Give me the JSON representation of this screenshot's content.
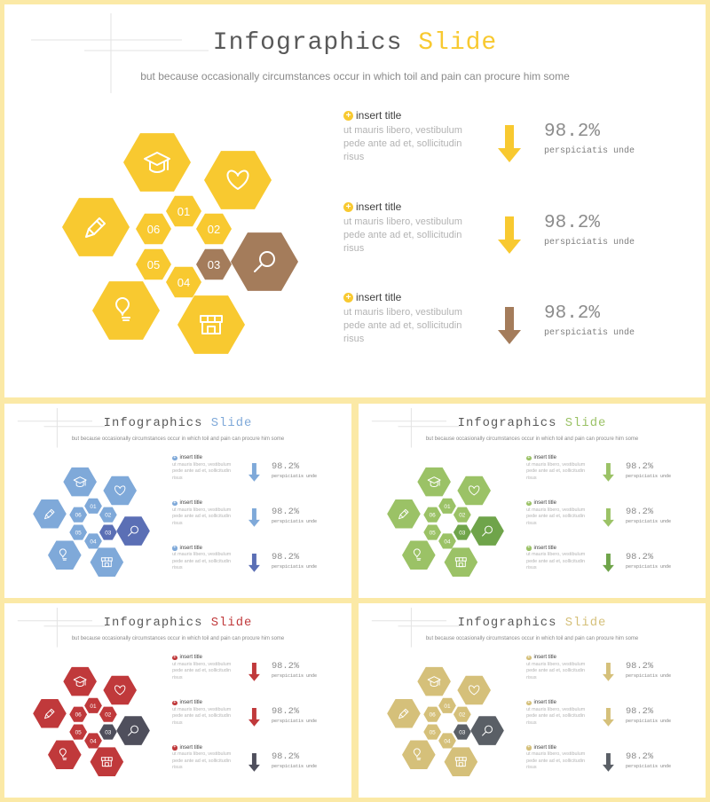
{
  "slides": [
    {
      "title_word1": "Infographics",
      "title_word2": "Slide",
      "subtitle": "but because occasionally circumstances occur in which toil and pain can procure him some",
      "colors": {
        "main": "#f8c930",
        "accent": "#a47c5b",
        "arrow_last": "#a47c5b"
      },
      "hex_numbers": [
        "01",
        "02",
        "03",
        "04",
        "05",
        "06"
      ],
      "hex_icons": [
        "graduation-cap-icon",
        "heart-icon",
        "magnifier-icon",
        "shop-icon",
        "lightbulb-icon",
        "pencil-icon"
      ],
      "items": [
        {
          "title": "insert title",
          "body": "ut mauris libero, vestibulum pede ante ad et, sollicitudin risus",
          "value": "98.2%",
          "caption": "perspiciatis unde"
        },
        {
          "title": "insert title",
          "body": "ut mauris libero, vestibulum pede ante ad et, sollicitudin risus",
          "value": "98.2%",
          "caption": "perspiciatis unde"
        },
        {
          "title": "insert title",
          "body": "ut mauris libero, vestibulum pede ante ad et, sollicitudin risus",
          "value": "98.2%",
          "caption": "perspiciatis unde"
        }
      ]
    },
    {
      "title_word1": "Infographics",
      "title_word2": "Slide",
      "subtitle": "but because occasionally circumstances occur in which toil and pain can procure him some",
      "colors": {
        "main": "#7fa9d9",
        "accent": "#5b6fb5",
        "arrow_last": "#5b6fb5"
      },
      "hex_numbers": [
        "01",
        "02",
        "03",
        "04",
        "05",
        "06"
      ],
      "hex_icons": [
        "graduation-cap-icon",
        "heart-icon",
        "magnifier-icon",
        "shop-icon",
        "lightbulb-icon",
        "pencil-icon"
      ],
      "items": [
        {
          "title": "insert title",
          "body": "ut mauris libero, vestibulum pede ante ad et, sollicitudin risus",
          "value": "98.2%",
          "caption": "perspiciatis unde"
        },
        {
          "title": "insert title",
          "body": "ut mauris libero, vestibulum pede ante ad et, sollicitudin risus",
          "value": "98.2%",
          "caption": "perspiciatis unde"
        },
        {
          "title": "insert title",
          "body": "ut mauris libero, vestibulum pede ante ad et, sollicitudin risus",
          "value": "98.2%",
          "caption": "perspiciatis unde"
        }
      ]
    },
    {
      "title_word1": "Infographics",
      "title_word2": "Slide",
      "subtitle": "but because occasionally circumstances occur in which toil and pain can procure him some",
      "colors": {
        "main": "#9bc266",
        "accent": "#6fa44a",
        "arrow_last": "#6fa44a"
      },
      "hex_numbers": [
        "01",
        "02",
        "03",
        "04",
        "05",
        "06"
      ],
      "hex_icons": [
        "graduation-cap-icon",
        "heart-icon",
        "magnifier-icon",
        "shop-icon",
        "lightbulb-icon",
        "pencil-icon"
      ],
      "items": [
        {
          "title": "insert title",
          "body": "ut mauris libero, vestibulum pede ante ad et, sollicitudin risus",
          "value": "98.2%",
          "caption": "perspiciatis unde"
        },
        {
          "title": "insert title",
          "body": "ut mauris libero, vestibulum pede ante ad et, sollicitudin risus",
          "value": "98.2%",
          "caption": "perspiciatis unde"
        },
        {
          "title": "insert title",
          "body": "ut mauris libero, vestibulum pede ante ad et, sollicitudin risus",
          "value": "98.2%",
          "caption": "perspiciatis unde"
        }
      ]
    },
    {
      "title_word1": "Infographics",
      "title_word2": "Slide",
      "subtitle": "but because occasionally circumstances occur in which toil and pain can procure him some",
      "colors": {
        "main": "#c0393b",
        "accent": "#4f4f5c",
        "arrow_last": "#4f4f5c"
      },
      "hex_numbers": [
        "01",
        "02",
        "03",
        "04",
        "05",
        "06"
      ],
      "hex_icons": [
        "graduation-cap-icon",
        "heart-icon",
        "magnifier-icon",
        "shop-icon",
        "lightbulb-icon",
        "pencil-icon"
      ],
      "items": [
        {
          "title": "insert title",
          "body": "ut mauris libero, vestibulum pede ante ad et, sollicitudin risus",
          "value": "98.2%",
          "caption": "perspiciatis unde"
        },
        {
          "title": "insert title",
          "body": "ut mauris libero, vestibulum pede ante ad et, sollicitudin risus",
          "value": "98.2%",
          "caption": "perspiciatis unde"
        },
        {
          "title": "insert title",
          "body": "ut mauris libero, vestibulum pede ante ad et, sollicitudin risus",
          "value": "98.2%",
          "caption": "perspiciatis unde"
        }
      ]
    },
    {
      "title_word1": "Infographics",
      "title_word2": "Slide",
      "subtitle": "but because occasionally circumstances occur in which toil and pain can procure him some",
      "colors": {
        "main": "#d5c07a",
        "accent": "#5a5f66",
        "arrow_last": "#5a5f66"
      },
      "hex_numbers": [
        "01",
        "02",
        "03",
        "04",
        "05",
        "06"
      ],
      "hex_icons": [
        "graduation-cap-icon",
        "heart-icon",
        "magnifier-icon",
        "shop-icon",
        "lightbulb-icon",
        "pencil-icon"
      ],
      "items": [
        {
          "title": "insert title",
          "body": "ut mauris libero, vestibulum pede ante ad et, sollicitudin risus",
          "value": "98.2%",
          "caption": "perspiciatis unde"
        },
        {
          "title": "insert title",
          "body": "ut mauris libero, vestibulum pede ante ad et, sollicitudin risus",
          "value": "98.2%",
          "caption": "perspiciatis unde"
        },
        {
          "title": "insert title",
          "body": "ut mauris libero, vestibulum pede ante ad et, sollicitudin risus",
          "value": "98.2%",
          "caption": "perspiciatis unde"
        }
      ]
    }
  ]
}
